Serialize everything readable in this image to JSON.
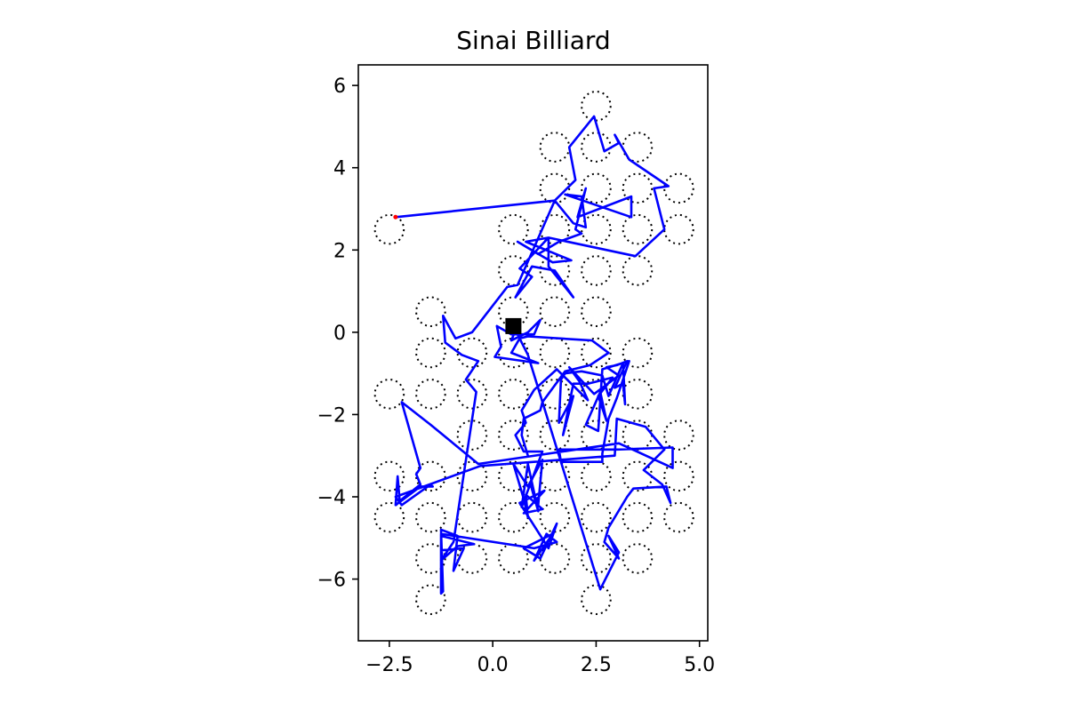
{
  "chart_data": {
    "type": "line",
    "title": "Sinai Billiard",
    "xlabel": "",
    "ylabel": "",
    "xlim": [
      -3.25,
      5.2
    ],
    "ylim": [
      -7.5,
      6.5
    ],
    "xticks": [
      {
        "value": -2.5,
        "label": "−2.5"
      },
      {
        "value": 0.0,
        "label": "0.0"
      },
      {
        "value": 2.5,
        "label": "2.5"
      },
      {
        "value": 5.0,
        "label": "5.0"
      }
    ],
    "yticks": [
      {
        "value": 6,
        "label": "6"
      },
      {
        "value": 4,
        "label": "4"
      },
      {
        "value": 2,
        "label": "2"
      },
      {
        "value": 0,
        "label": "0"
      },
      {
        "value": -2,
        "label": "−2"
      },
      {
        "value": -4,
        "label": "−4"
      },
      {
        "value": -6,
        "label": "−6"
      }
    ],
    "grid": false,
    "scatterer_radius": 0.35,
    "scatterers": [
      [
        2.5,
        5.5
      ],
      [
        1.5,
        4.5
      ],
      [
        2.5,
        4.5
      ],
      [
        3.5,
        4.5
      ],
      [
        1.5,
        3.5
      ],
      [
        2.5,
        3.5
      ],
      [
        3.5,
        3.5
      ],
      [
        4.5,
        3.5
      ],
      [
        -2.5,
        2.5
      ],
      [
        0.5,
        2.5
      ],
      [
        1.5,
        2.5
      ],
      [
        2.5,
        2.5
      ],
      [
        3.5,
        2.5
      ],
      [
        4.5,
        2.5
      ],
      [
        0.5,
        1.5
      ],
      [
        1.5,
        1.5
      ],
      [
        2.5,
        1.5
      ],
      [
        3.5,
        1.5
      ],
      [
        -1.5,
        0.5
      ],
      [
        0.5,
        0.5
      ],
      [
        1.5,
        0.5
      ],
      [
        2.5,
        0.5
      ],
      [
        -1.5,
        -0.5
      ],
      [
        -0.5,
        -0.5
      ],
      [
        0.5,
        -0.5
      ],
      [
        1.5,
        -0.5
      ],
      [
        2.5,
        -0.5
      ],
      [
        3.5,
        -0.5
      ],
      [
        -2.5,
        -1.5
      ],
      [
        -1.5,
        -1.5
      ],
      [
        -0.5,
        -1.5
      ],
      [
        0.5,
        -1.5
      ],
      [
        1.5,
        -1.5
      ],
      [
        2.5,
        -1.5
      ],
      [
        3.5,
        -1.5
      ],
      [
        -0.5,
        -2.5
      ],
      [
        0.5,
        -2.5
      ],
      [
        1.5,
        -2.5
      ],
      [
        2.5,
        -2.5
      ],
      [
        3.5,
        -2.5
      ],
      [
        4.5,
        -2.5
      ],
      [
        -2.5,
        -3.5
      ],
      [
        -1.5,
        -3.5
      ],
      [
        -0.5,
        -3.5
      ],
      [
        0.5,
        -3.5
      ],
      [
        1.5,
        -3.5
      ],
      [
        2.5,
        -3.5
      ],
      [
        3.5,
        -3.5
      ],
      [
        4.5,
        -3.5
      ],
      [
        -2.5,
        -4.5
      ],
      [
        -1.5,
        -4.5
      ],
      [
        -0.5,
        -4.5
      ],
      [
        0.5,
        -4.5
      ],
      [
        1.5,
        -4.5
      ],
      [
        2.5,
        -4.5
      ],
      [
        3.5,
        -4.5
      ],
      [
        4.5,
        -4.5
      ],
      [
        -1.5,
        -5.5
      ],
      [
        -0.5,
        -5.5
      ],
      [
        0.5,
        -5.5
      ],
      [
        1.5,
        -5.5
      ],
      [
        2.5,
        -5.5
      ],
      [
        3.5,
        -5.5
      ],
      [
        -1.5,
        -6.5
      ],
      [
        2.5,
        -6.5
      ]
    ],
    "start_marker": {
      "x": 0.5,
      "y": 0.15,
      "color": "#000000"
    },
    "end_marker": {
      "x": -2.35,
      "y": 2.8,
      "color": "#ff0000"
    },
    "series": [
      {
        "color": "#0000ff",
        "points": [
          [
            -2.35,
            2.8
          ],
          [
            1.5,
            3.2
          ],
          [
            1.95,
            2.65
          ],
          [
            2.25,
            2.55
          ],
          [
            2.15,
            3.3
          ],
          [
            1.75,
            3.35
          ],
          [
            3.35,
            2.8
          ],
          [
            3.35,
            3.3
          ],
          [
            2.05,
            2.8
          ],
          [
            2.25,
            3.5
          ],
          [
            2.0,
            2.5
          ],
          [
            2.15,
            2.4
          ],
          [
            1.6,
            2.2
          ],
          [
            1.1,
            1.9
          ],
          [
            0.6,
            2.2
          ],
          [
            1.45,
            1.7
          ],
          [
            1.9,
            1.75
          ],
          [
            0.8,
            2.2
          ],
          [
            1.35,
            2.3
          ],
          [
            0.65,
            1.55
          ],
          [
            0.95,
            1.35
          ],
          [
            0.55,
            0.85
          ],
          [
            0.95,
            1.6
          ],
          [
            1.5,
            1.5
          ],
          [
            1.95,
            0.85
          ],
          [
            1.35,
            1.6
          ],
          [
            1.35,
            2.3
          ],
          [
            3.45,
            1.85
          ],
          [
            4.15,
            2.5
          ],
          [
            3.9,
            3.5
          ],
          [
            4.25,
            3.55
          ],
          [
            3.3,
            4.2
          ],
          [
            2.95,
            4.8
          ],
          [
            3.05,
            4.6
          ],
          [
            2.7,
            4.4
          ],
          [
            2.45,
            5.25
          ],
          [
            1.85,
            4.5
          ],
          [
            2.0,
            3.7
          ],
          [
            1.7,
            3.4
          ],
          [
            1.5,
            3.2
          ],
          [
            0.6,
            1.15
          ],
          [
            0.35,
            1.1
          ],
          [
            -0.5,
            0.0
          ],
          [
            -0.9,
            -0.15
          ],
          [
            -1.2,
            0.4
          ],
          [
            -1.15,
            -0.25
          ],
          [
            -0.75,
            -0.55
          ],
          [
            -0.35,
            -0.7
          ],
          [
            -0.65,
            -1.15
          ],
          [
            -0.4,
            -1.45
          ],
          [
            -0.95,
            -5.1
          ],
          [
            -1.25,
            -5.55
          ],
          [
            -0.85,
            -5.2
          ],
          [
            -0.45,
            -5.15
          ],
          [
            -1.25,
            -4.95
          ],
          [
            -1.25,
            -5.3
          ],
          [
            -0.7,
            -5.25
          ],
          [
            -0.95,
            -5.8
          ],
          [
            -0.85,
            -4.95
          ],
          [
            -1.25,
            -4.8
          ],
          [
            -1.2,
            -6.3
          ],
          [
            -1.25,
            -6.35
          ],
          [
            -1.25,
            -4.9
          ],
          [
            1.0,
            -5.25
          ],
          [
            1.55,
            -5.1
          ],
          [
            1.3,
            -4.9
          ],
          [
            1.0,
            -5.55
          ],
          [
            1.45,
            -4.9
          ],
          [
            0.75,
            -5.25
          ],
          [
            1.15,
            -5.5
          ],
          [
            1.55,
            -4.65
          ],
          [
            1.35,
            -5.25
          ],
          [
            0.65,
            -4.15
          ],
          [
            1.25,
            -3.85
          ],
          [
            0.75,
            -4.4
          ],
          [
            1.2,
            -4.3
          ],
          [
            0.8,
            -3.95
          ],
          [
            0.85,
            -4.5
          ],
          [
            0.75,
            -4.05
          ],
          [
            0.5,
            -3.2
          ],
          [
            0.85,
            -3.75
          ],
          [
            1.2,
            -3.1
          ],
          [
            1.1,
            -4.2
          ],
          [
            0.9,
            -3.65
          ],
          [
            1.1,
            -4.35
          ],
          [
            0.85,
            -3.2
          ],
          [
            0.7,
            -4.25
          ],
          [
            1.2,
            -2.9
          ],
          [
            0.75,
            -2.9
          ],
          [
            0.55,
            -2.5
          ],
          [
            0.8,
            -2.2
          ],
          [
            0.7,
            -1.9
          ],
          [
            1.0,
            -1.4
          ],
          [
            1.55,
            -0.9
          ],
          [
            2.3,
            -1.65
          ],
          [
            2.1,
            -1.2
          ],
          [
            1.85,
            -0.85
          ],
          [
            2.45,
            -1.5
          ],
          [
            3.05,
            -1.05
          ],
          [
            2.75,
            -0.85
          ],
          [
            3.0,
            -0.8
          ],
          [
            3.25,
            -0.7
          ],
          [
            2.95,
            -1.35
          ],
          [
            3.15,
            -1.25
          ],
          [
            3.2,
            -1.75
          ],
          [
            3.15,
            -0.75
          ],
          [
            2.8,
            -1.55
          ],
          [
            2.65,
            -1.05
          ],
          [
            2.15,
            -0.95
          ],
          [
            1.75,
            -1.0
          ],
          [
            1.65,
            -1.15
          ],
          [
            1.6,
            -2.2
          ],
          [
            1.95,
            -1.55
          ],
          [
            1.7,
            -2.5
          ],
          [
            1.95,
            -1.25
          ],
          [
            2.3,
            -1.25
          ],
          [
            2.9,
            -1.1
          ],
          [
            2.55,
            -1.55
          ],
          [
            2.75,
            -2.15
          ],
          [
            2.6,
            -1.45
          ],
          [
            2.25,
            -2.25
          ],
          [
            2.55,
            -2.4
          ],
          [
            2.65,
            -0.9
          ],
          [
            3.3,
            -0.7
          ],
          [
            3.0,
            -1.6
          ],
          [
            2.8,
            -2.1
          ],
          [
            2.65,
            -2.95
          ],
          [
            2.65,
            -3.15
          ],
          [
            1.65,
            -3.15
          ],
          [
            1.6,
            -2.85
          ],
          [
            3.0,
            -2.85
          ],
          [
            4.35,
            -2.8
          ],
          [
            4.35,
            -3.3
          ],
          [
            3.6,
            -2.95
          ],
          [
            3.05,
            -2.7
          ],
          [
            -0.35,
            -3.2
          ],
          [
            -1.5,
            -2.25
          ],
          [
            -2.2,
            -1.7
          ],
          [
            -1.75,
            -3.3
          ],
          [
            -1.85,
            -3.45
          ],
          [
            -1.75,
            -3.7
          ],
          [
            -2.25,
            -4.1
          ],
          [
            -2.3,
            -3.5
          ],
          [
            -2.35,
            -4.2
          ],
          [
            -1.75,
            -3.75
          ],
          [
            -1.45,
            -3.75
          ],
          [
            -1.5,
            -3.7
          ],
          [
            -2.2,
            -4.2
          ],
          [
            -2.35,
            -4.0
          ],
          [
            -0.3,
            -3.25
          ],
          [
            2.95,
            -3.0
          ],
          [
            3.0,
            -2.1
          ],
          [
            3.7,
            -2.3
          ],
          [
            4.15,
            -2.85
          ],
          [
            3.65,
            -3.35
          ],
          [
            4.1,
            -3.7
          ],
          [
            4.3,
            -4.15
          ],
          [
            4.2,
            -3.75
          ],
          [
            3.4,
            -3.8
          ],
          [
            3.25,
            -4.0
          ],
          [
            2.8,
            -4.75
          ],
          [
            2.7,
            -5.1
          ],
          [
            3.05,
            -5.5
          ],
          [
            2.8,
            -4.95
          ],
          [
            3.05,
            -5.35
          ],
          [
            2.6,
            -6.25
          ],
          [
            0.85,
            -0.55
          ],
          [
            0.55,
            0.05
          ],
          [
            0.45,
            -0.2
          ],
          [
            0.85,
            0.0
          ],
          [
            1.15,
            0.3
          ],
          [
            1.0,
            -0.05
          ],
          [
            0.45,
            -0.05
          ],
          [
            0.1,
            0.15
          ],
          [
            0.2,
            -0.35
          ],
          [
            0.05,
            -0.6
          ],
          [
            1.1,
            -0.75
          ],
          [
            0.45,
            -0.5
          ],
          [
            0.65,
            -0.15
          ],
          [
            0.85,
            -0.1
          ],
          [
            2.4,
            -0.2
          ],
          [
            2.8,
            -0.5
          ],
          [
            2.35,
            -0.8
          ],
          [
            1.75,
            -0.95
          ],
          [
            1.2,
            -1.7
          ],
          [
            1.15,
            -1.9
          ],
          [
            0.75,
            -2.1
          ],
          [
            0.7,
            -2.5
          ],
          [
            0.85,
            -3.0
          ]
        ]
      }
    ]
  }
}
